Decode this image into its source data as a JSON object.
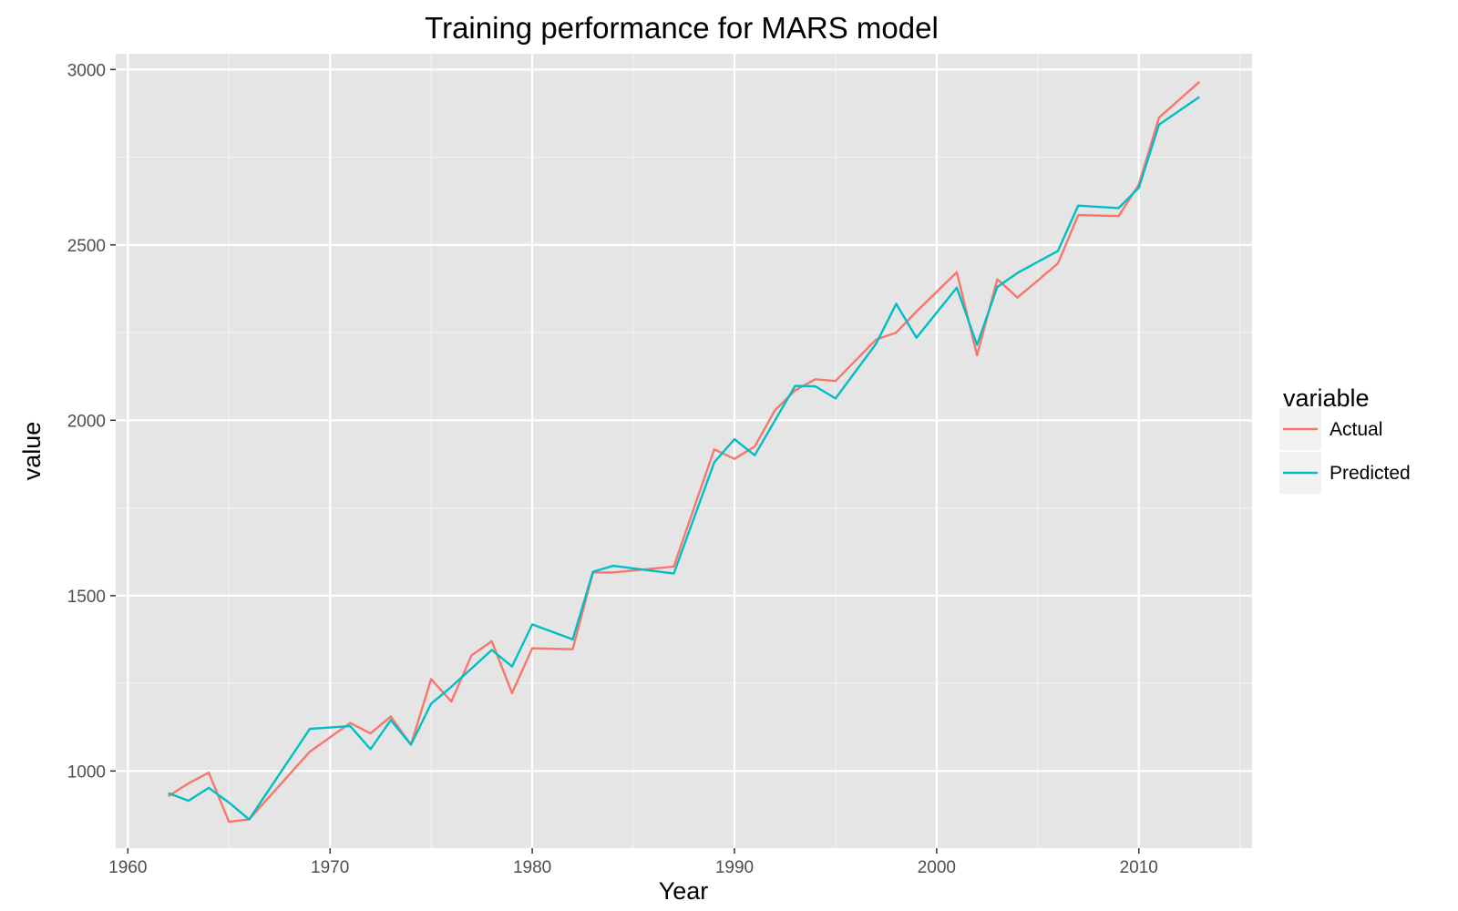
{
  "chart_data": {
    "type": "line",
    "title": "Training performance for MARS model",
    "xlabel": "Year",
    "ylabel": "value",
    "xlim": [
      1959.4,
      2015.6
    ],
    "ylim": [
      780,
      3045
    ],
    "x_ticks": [
      1960,
      1970,
      1980,
      1990,
      2000,
      2010
    ],
    "y_ticks": [
      1000,
      1500,
      2000,
      2500,
      3000
    ],
    "x_tick_labels": [
      "1960",
      "1970",
      "1980",
      "1990",
      "2000",
      "2010"
    ],
    "y_tick_labels": [
      "1000",
      "1500",
      "2000",
      "2500",
      "3000"
    ],
    "grid": true,
    "legend": {
      "title": "variable",
      "position": "right"
    },
    "series": [
      {
        "name": "Actual",
        "color": "#F8766D",
        "points": [
          [
            1962,
            928
          ],
          [
            1963,
            965
          ],
          [
            1964,
            995
          ],
          [
            1965,
            855
          ],
          [
            1966,
            862
          ],
          [
            1969,
            1055
          ],
          [
            1971,
            1137
          ],
          [
            1972,
            1107
          ],
          [
            1973,
            1155
          ],
          [
            1974,
            1075
          ],
          [
            1975,
            1262
          ],
          [
            1976,
            1198
          ],
          [
            1977,
            1330
          ],
          [
            1978,
            1370
          ],
          [
            1979,
            1222
          ],
          [
            1980,
            1350
          ],
          [
            1982,
            1347
          ],
          [
            1983,
            1566
          ],
          [
            1984,
            1566
          ],
          [
            1987,
            1583
          ],
          [
            1989,
            1917
          ],
          [
            1990,
            1890
          ],
          [
            1991,
            1925
          ],
          [
            1992,
            2028
          ],
          [
            1993,
            2085
          ],
          [
            1994,
            2117
          ],
          [
            1995,
            2112
          ],
          [
            1997,
            2230
          ],
          [
            1998,
            2250
          ],
          [
            1999,
            2310
          ],
          [
            2001,
            2422
          ],
          [
            2002,
            2185
          ],
          [
            2003,
            2402
          ],
          [
            2004,
            2350
          ],
          [
            2006,
            2447
          ],
          [
            2007,
            2585
          ],
          [
            2009,
            2582
          ],
          [
            2010,
            2672
          ],
          [
            2011,
            2863
          ],
          [
            2013,
            2965
          ]
        ]
      },
      {
        "name": "Predicted",
        "color": "#00BFC4",
        "points": [
          [
            1962,
            937
          ],
          [
            1963,
            915
          ],
          [
            1964,
            952
          ],
          [
            1965,
            910
          ],
          [
            1966,
            862
          ],
          [
            1969,
            1120
          ],
          [
            1971,
            1128
          ],
          [
            1972,
            1062
          ],
          [
            1973,
            1145
          ],
          [
            1974,
            1075
          ],
          [
            1975,
            1192
          ],
          [
            1976,
            1240
          ],
          [
            1978,
            1345
          ],
          [
            1979,
            1298
          ],
          [
            1980,
            1418
          ],
          [
            1982,
            1375
          ],
          [
            1983,
            1568
          ],
          [
            1984,
            1585
          ],
          [
            1987,
            1563
          ],
          [
            1989,
            1880
          ],
          [
            1990,
            1946
          ],
          [
            1991,
            1900
          ],
          [
            1993,
            2098
          ],
          [
            1994,
            2097
          ],
          [
            1995,
            2062
          ],
          [
            1997,
            2218
          ],
          [
            1998,
            2332
          ],
          [
            1999,
            2235
          ],
          [
            2001,
            2378
          ],
          [
            2002,
            2215
          ],
          [
            2003,
            2380
          ],
          [
            2004,
            2420
          ],
          [
            2006,
            2483
          ],
          [
            2007,
            2612
          ],
          [
            2009,
            2605
          ],
          [
            2010,
            2663
          ],
          [
            2011,
            2843
          ],
          [
            2013,
            2922
          ]
        ]
      }
    ]
  }
}
